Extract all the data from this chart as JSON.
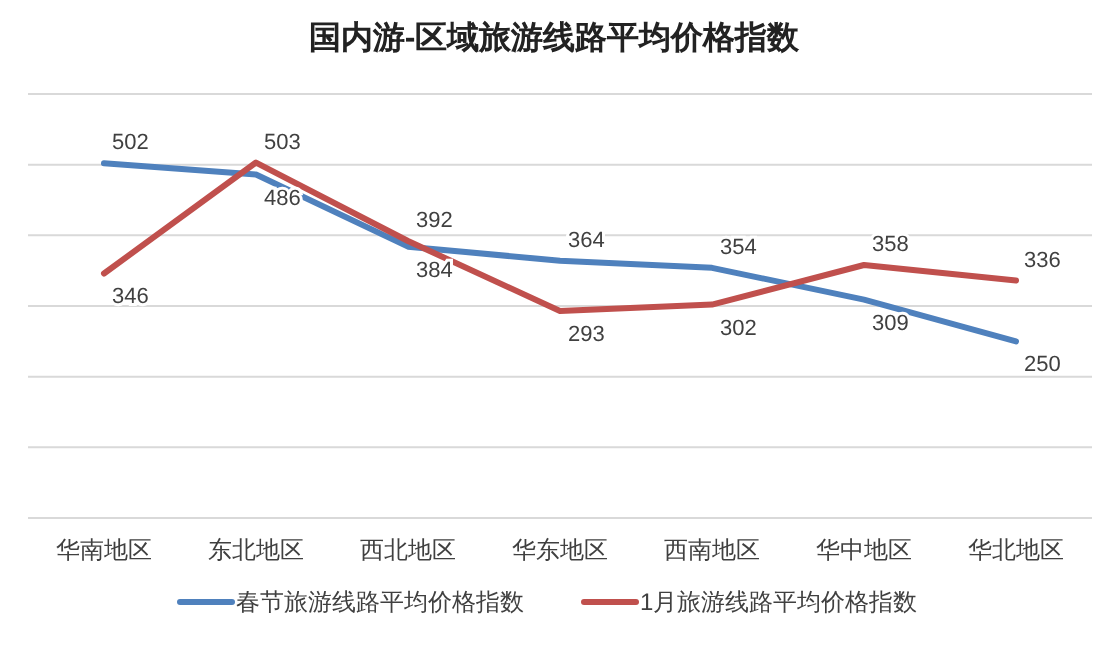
{
  "chart_data": {
    "type": "line",
    "title": "国内游-区域旅游线路平均价格指数",
    "categories": [
      "华南地区",
      "东北地区",
      "西北地区",
      "华东地区",
      "西南地区",
      "华中地区",
      "华北地区"
    ],
    "series": [
      {
        "name": "春节旅游线路平均价格指数",
        "color": "#4f81bd",
        "values": [
          502,
          486,
          384,
          364,
          354,
          309,
          250
        ]
      },
      {
        "name": "1月旅游线路平均价格指数",
        "color": "#c0504d",
        "values": [
          346,
          503,
          392,
          293,
          302,
          358,
          336
        ]
      }
    ],
    "ylim": [
      0,
      600
    ],
    "yticks": [
      {
        "value": 0,
        "label": null
      },
      {
        "value": 100,
        "label": null
      },
      {
        "value": 200,
        "label": null
      },
      {
        "value": 300,
        "label": null
      },
      {
        "value": 400,
        "label": null
      },
      {
        "value": 500,
        "label": null
      },
      {
        "value": 600,
        "label": null
      }
    ],
    "grid": "y",
    "data_labels": true,
    "legend": "bottom",
    "marker": "none",
    "line_style": "solid"
  }
}
